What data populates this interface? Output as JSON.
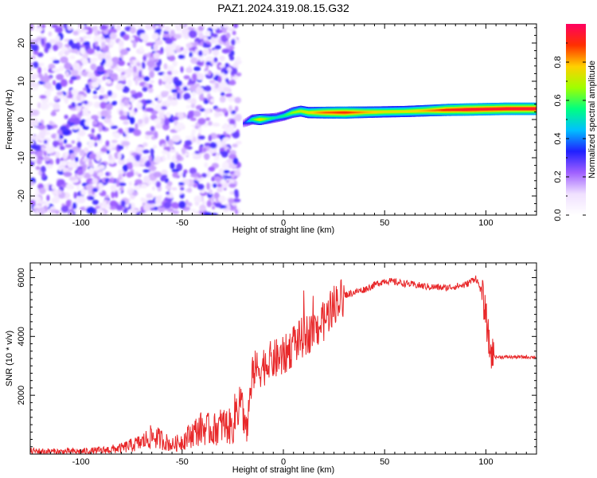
{
  "title": "PAZ1.2024.319.08.15.G32",
  "chart_data": [
    {
      "type": "heatmap",
      "xlabel": "Height of straight line (km)",
      "ylabel": "Frequency (Hz)",
      "xlim": [
        -125,
        125
      ],
      "ylim": [
        -25,
        25
      ],
      "xticks": [
        -100,
        -50,
        0,
        50,
        100
      ],
      "yticks": [
        -20,
        -10,
        0,
        10,
        20
      ],
      "noise_region_x": [
        -125,
        -22
      ],
      "colorbar": {
        "label": "Normalized spectral amplitude",
        "range": [
          0,
          1
        ],
        "ticks": [
          0.0,
          0.2,
          0.4,
          0.6,
          0.8
        ],
        "colormap": [
          "#ffffff",
          "#f0e0ff",
          "#a060ff",
          "#2020ff",
          "#00c0ff",
          "#00ff80",
          "#a0ff00",
          "#ffd000",
          "#ff3000",
          "#ff0060"
        ]
      },
      "ridge": {
        "x": [
          -20,
          -16,
          -12,
          -8,
          -4,
          0,
          4,
          8,
          12,
          20,
          30,
          40,
          50,
          60,
          70,
          80,
          90,
          100,
          110,
          125
        ],
        "frequency": [
          -1,
          0,
          0,
          0.2,
          0.5,
          1,
          1.8,
          2.2,
          1.8,
          1.8,
          1.8,
          1.9,
          2,
          2.1,
          2.3,
          2.5,
          2.6,
          2.7,
          2.8,
          2.8
        ],
        "amplitude": [
          0.3,
          0.55,
          0.75,
          0.6,
          0.5,
          0.55,
          0.65,
          0.7,
          0.75,
          0.85,
          0.9,
          0.8,
          0.75,
          0.75,
          0.8,
          0.9,
          0.95,
          0.95,
          0.95,
          0.95
        ]
      }
    },
    {
      "type": "line",
      "xlabel": "Height of straight line (km)",
      "ylabel": "SNR (10 * v/v)",
      "xlim": [
        -125,
        125
      ],
      "ylim": [
        0,
        6500
      ],
      "xticks": [
        -100,
        -50,
        0,
        50,
        100
      ],
      "yticks": [
        2000,
        4000,
        6000
      ],
      "line_color": "#e8282a",
      "series": [
        {
          "x": [
            -125,
            -110,
            -100,
            -90,
            -80,
            -70,
            -65,
            -60,
            -55,
            -50,
            -45,
            -40,
            -35,
            -30,
            -25,
            -22,
            -20,
            -18,
            -15,
            -10,
            -5,
            0,
            5,
            10,
            15,
            20,
            25,
            30,
            40,
            50,
            60,
            70,
            80,
            90,
            95,
            98,
            100,
            102,
            105,
            110,
            120,
            125
          ],
          "values": [
            100,
            80,
            90,
            120,
            200,
            400,
            600,
            500,
            300,
            450,
            700,
            900,
            800,
            1000,
            900,
            2000,
            1500,
            800,
            2800,
            3000,
            3200,
            3300,
            3700,
            4000,
            4200,
            4500,
            5100,
            5400,
            5600,
            5900,
            5800,
            5700,
            5650,
            5750,
            6000,
            5500,
            4700,
            3500,
            3300,
            3300,
            3300,
            3300
          ]
        }
      ]
    }
  ]
}
